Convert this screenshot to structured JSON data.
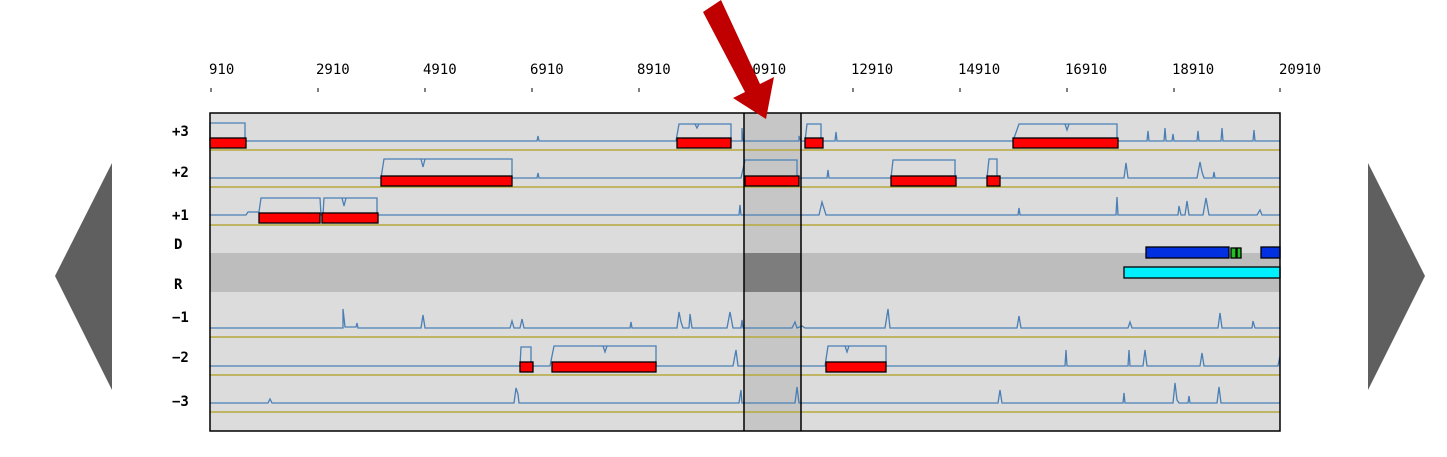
{
  "ruler": {
    "ticks": [
      "910",
      "2910",
      "4910",
      "6910",
      "8910",
      "10910",
      "12910",
      "14910",
      "16910",
      "18910",
      "20910"
    ]
  },
  "tracks": [
    {
      "label": "+3"
    },
    {
      "label": "+2"
    },
    {
      "label": "+1"
    },
    {
      "label": "D"
    },
    {
      "label": "R"
    },
    {
      "label": "−1"
    },
    {
      "label": "−2"
    },
    {
      "label": "−3"
    }
  ],
  "colors": {
    "panel_bg": "#dcdcdc",
    "band_bg": "#bdbdbd",
    "selection": "#c6c6c6",
    "selection_band": "#7d7d7d",
    "signal": "#4a7fb5",
    "baseline": "#b5a83a",
    "exon": "#ff0000",
    "arrow": "#c00000",
    "nav": "#5f5f5f",
    "d_track": "#0030e0",
    "d_small": "#20c020",
    "r_track": "#00f0ff"
  },
  "icons": {
    "left_nav": "nav-left-triangle-icon",
    "right_nav": "nav-right-triangle-icon",
    "pointer": "down-arrow-icon"
  }
}
